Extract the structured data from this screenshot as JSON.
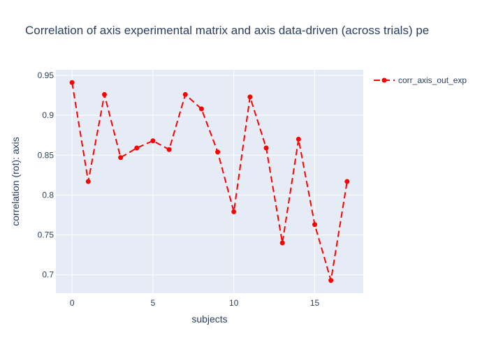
{
  "chart_data": {
    "type": "line",
    "title": "Correlation of axis experimental matrix and axis data-driven (across trials) pe",
    "xlabel": "subjects",
    "ylabel": "correlation (rot): axis",
    "xlim": [
      -1,
      18
    ],
    "ylim": [
      0.677,
      0.957
    ],
    "x_ticks": [
      0,
      5,
      10,
      15
    ],
    "y_ticks": [
      0.7,
      0.75,
      0.8,
      0.85,
      0.9,
      0.95
    ],
    "y_tick_labels": [
      "0.7",
      "0.75",
      "0.8",
      "0.85",
      "0.9",
      "0.95"
    ],
    "grid": true,
    "legend_position": "top-right",
    "series": [
      {
        "name": "corr_axis_out_exp",
        "color": "#ff0000",
        "line_style": "dash",
        "marker": "circle",
        "x": [
          0,
          1,
          2,
          3,
          4,
          5,
          6,
          7,
          8,
          9,
          10,
          11,
          12,
          13,
          14,
          15,
          16,
          17
        ],
        "values": [
          0.941,
          0.817,
          0.926,
          0.847,
          0.859,
          0.868,
          0.857,
          0.926,
          0.908,
          0.854,
          0.779,
          0.923,
          0.859,
          0.74,
          0.87,
          0.763,
          0.693,
          0.817
        ]
      }
    ]
  }
}
